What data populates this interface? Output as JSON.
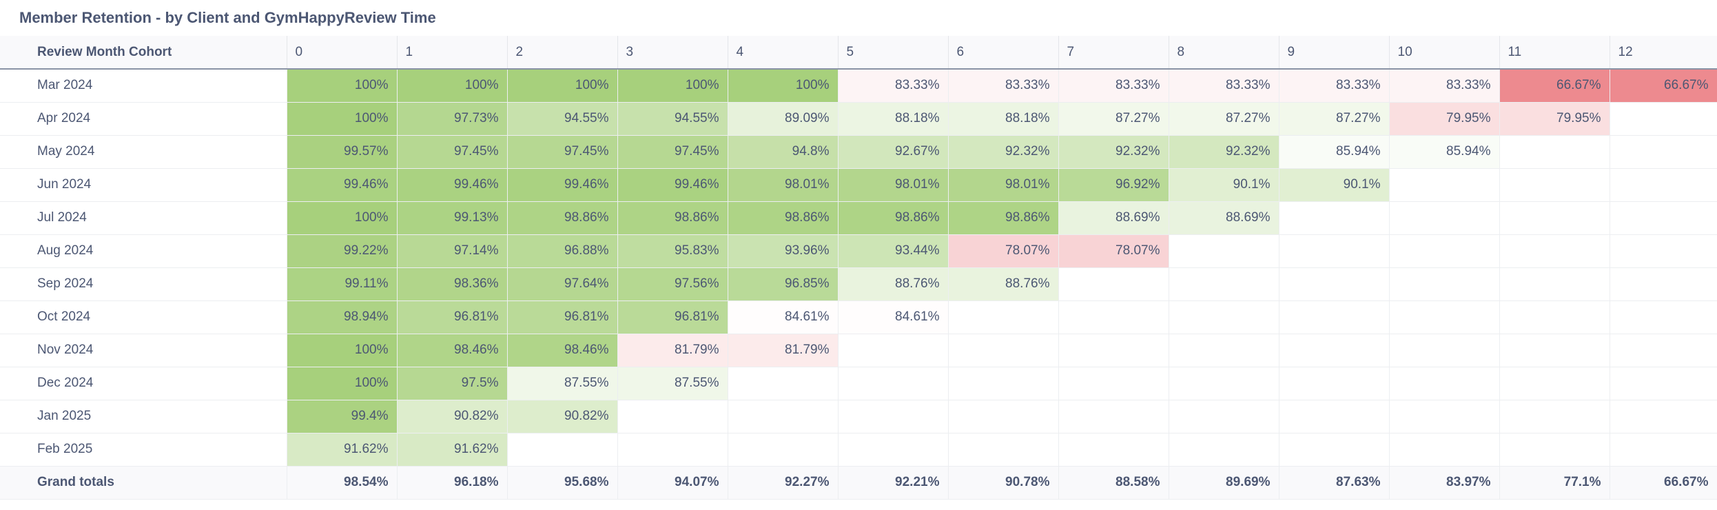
{
  "title": "Member Retention - by Client and GymHappyReview Time",
  "table": {
    "row_header": "Review Month Cohort",
    "columns": [
      "0",
      "1",
      "2",
      "3",
      "4",
      "5",
      "6",
      "7",
      "8",
      "9",
      "10",
      "11",
      "12"
    ],
    "rows": [
      {
        "label": "Mar 2024",
        "values": [
          "100%",
          "100%",
          "100%",
          "100%",
          "100%",
          "83.33%",
          "83.33%",
          "83.33%",
          "83.33%",
          "83.33%",
          "83.33%",
          "66.67%",
          "66.67%"
        ]
      },
      {
        "label": "Apr 2024",
        "values": [
          "100%",
          "97.73%",
          "94.55%",
          "94.55%",
          "89.09%",
          "88.18%",
          "88.18%",
          "87.27%",
          "87.27%",
          "87.27%",
          "79.95%",
          "79.95%",
          ""
        ]
      },
      {
        "label": "May 2024",
        "values": [
          "99.57%",
          "97.45%",
          "97.45%",
          "97.45%",
          "94.8%",
          "92.67%",
          "92.32%",
          "92.32%",
          "92.32%",
          "85.94%",
          "85.94%",
          "",
          ""
        ]
      },
      {
        "label": "Jun 2024",
        "values": [
          "99.46%",
          "99.46%",
          "99.46%",
          "99.46%",
          "98.01%",
          "98.01%",
          "98.01%",
          "96.92%",
          "90.1%",
          "90.1%",
          "",
          "",
          ""
        ]
      },
      {
        "label": "Jul 2024",
        "values": [
          "100%",
          "99.13%",
          "98.86%",
          "98.86%",
          "98.86%",
          "98.86%",
          "98.86%",
          "88.69%",
          "88.69%",
          "",
          "",
          "",
          ""
        ]
      },
      {
        "label": "Aug 2024",
        "values": [
          "99.22%",
          "97.14%",
          "96.88%",
          "95.83%",
          "93.96%",
          "93.44%",
          "78.07%",
          "78.07%",
          "",
          "",
          "",
          "",
          ""
        ]
      },
      {
        "label": "Sep 2024",
        "values": [
          "99.11%",
          "98.36%",
          "97.64%",
          "97.56%",
          "96.85%",
          "88.76%",
          "88.76%",
          "",
          "",
          "",
          "",
          "",
          ""
        ]
      },
      {
        "label": "Oct 2024",
        "values": [
          "98.94%",
          "96.81%",
          "96.81%",
          "96.81%",
          "84.61%",
          "84.61%",
          "",
          "",
          "",
          "",
          "",
          "",
          ""
        ]
      },
      {
        "label": "Nov 2024",
        "values": [
          "100%",
          "98.46%",
          "98.46%",
          "81.79%",
          "81.79%",
          "",
          "",
          "",
          "",
          "",
          "",
          "",
          ""
        ]
      },
      {
        "label": "Dec 2024",
        "values": [
          "100%",
          "97.5%",
          "87.55%",
          "87.55%",
          "",
          "",
          "",
          "",
          "",
          "",
          "",
          "",
          ""
        ]
      },
      {
        "label": "Jan 2025",
        "values": [
          "99.4%",
          "90.82%",
          "90.82%",
          "",
          "",
          "",
          "",
          "",
          "",
          "",
          "",
          "",
          ""
        ]
      },
      {
        "label": "Feb 2025",
        "values": [
          "91.62%",
          "91.62%",
          "",
          "",
          "",
          "",
          "",
          "",
          "",
          "",
          "",
          "",
          ""
        ]
      }
    ],
    "totals": {
      "label": "Grand totals",
      "values": [
        "98.54%",
        "96.18%",
        "95.68%",
        "94.07%",
        "92.27%",
        "92.21%",
        "90.78%",
        "88.58%",
        "89.69%",
        "87.63%",
        "83.97%",
        "77.1%",
        "66.67%"
      ]
    }
  },
  "colors": {
    "scale_low": "#ed8a8f",
    "scale_mid": "#ffffff",
    "scale_high": "#a7d07c",
    "scale_min_value": 66.67,
    "scale_mid_value": 85.0,
    "scale_max_value": 100
  }
}
